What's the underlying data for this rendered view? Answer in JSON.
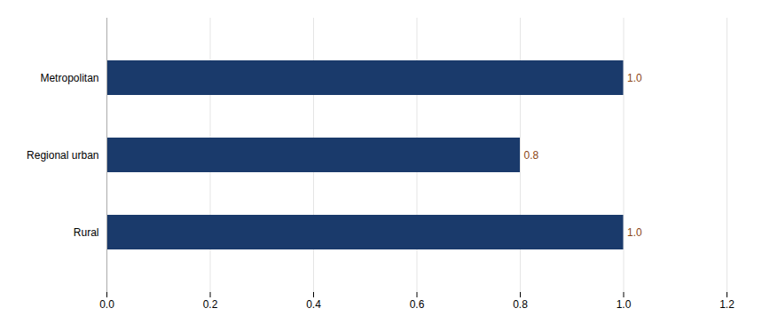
{
  "chart_data": {
    "type": "bar",
    "orientation": "horizontal",
    "categories": [
      "Rural",
      "Regional urban",
      "Metropolitan"
    ],
    "values": [
      1.0,
      0.8,
      1.0
    ],
    "value_labels": [
      "1.0",
      "0.8",
      "1.0"
    ],
    "data_labels": true,
    "color": "#1a3a6b",
    "xlim": [
      0,
      1.2
    ],
    "xticks": [
      {
        "value": 0,
        "label": "0.0"
      },
      0.2,
      0.4,
      0.6,
      0.8,
      {
        "value": 1,
        "label": "1.0"
      },
      1.2
    ],
    "grid": true
  }
}
